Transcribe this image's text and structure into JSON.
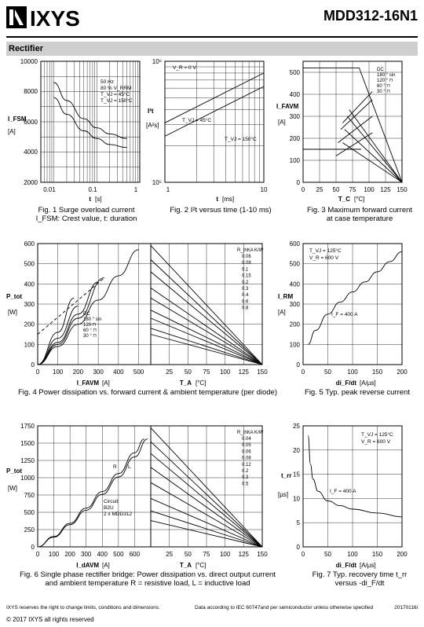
{
  "header": {
    "logo_text": "IXYS",
    "part_number": "MDD312-16N1"
  },
  "section": {
    "title": "Rectifier"
  },
  "figures": {
    "fig1": {
      "caption_line1": "Fig. 1  Surge overload current",
      "caption_line2": "I_FSM: Crest value, t: duration",
      "ylabel": "I_FSM",
      "yunit": "[A]",
      "xlabel": "t",
      "xunit": "[s]",
      "yticks": [
        "10000",
        "8000",
        "6000",
        "4000",
        "2000"
      ],
      "xticks": [
        "0.01",
        "0.1",
        "1"
      ],
      "legend": [
        "50 Hz",
        "80 % V_RRM",
        "T_VJ =  45°C",
        "T_VJ = 150°C"
      ]
    },
    "fig2": {
      "caption": "Fig. 2  I²t versus time (1-10 ms)",
      "ylabel": "I²t",
      "yunit": "[A²s]",
      "xlabel": "t",
      "xunit": "[ms]",
      "yticks": [
        "10⁶",
        "10⁵"
      ],
      "xticks": [
        "1",
        "10"
      ],
      "annotations": [
        "V_R = 0 V",
        "T_VJ = 45°C",
        "T_VJ = 150°C"
      ]
    },
    "fig3": {
      "caption_line1": "Fig. 3  Maximum forward current",
      "caption_line2": "at case temperature",
      "ylabel": "I_FAVM",
      "yunit": "[A]",
      "xlabel": "T_C",
      "xunit": "[°C]",
      "yticks": [
        "500",
        "400",
        "300",
        "200",
        "100",
        "0"
      ],
      "xticks": [
        "0",
        "25",
        "50",
        "75",
        "100",
        "125",
        "150"
      ],
      "legend": [
        "DC",
        "180 ° sin",
        "120 ° ⊓",
        "60 ° ⊓",
        "30 ° ⊓"
      ]
    },
    "fig4": {
      "caption": "Fig. 4  Power dissipation vs. forward current & ambient temperature (per diode)",
      "ylabel": "P_tot",
      "yunit": "[W]",
      "xlabel_left": "I_FAVM",
      "xunit_left": "[A]",
      "xlabel_right": "T_A",
      "xunit_right": "[°C]",
      "yticks": [
        "600",
        "500",
        "400",
        "300",
        "200",
        "100",
        "0"
      ],
      "xticks_left": [
        "0",
        "100",
        "200",
        "300",
        "400",
        "500"
      ],
      "xticks_right": [
        "0",
        "25",
        "50",
        "75",
        "100",
        "125",
        "150"
      ],
      "legend": [
        "DC",
        "180 ° sin",
        "120 ⊓",
        "60 ° ⊓",
        "30 ° ⊓"
      ],
      "rth_header": "R_thKA K/W",
      "rth_values": [
        "0.06",
        "0.08",
        "0.1",
        "0.15",
        "0.2",
        "0.3",
        "0.4",
        "0.6",
        "0.8"
      ]
    },
    "fig5": {
      "caption": "Fig. 5  Typ. peak reverse current",
      "ylabel": "I_RM",
      "yunit": "[A]",
      "xlabel": "di_F/dt",
      "xunit": "[A/µs]",
      "yticks": [
        "600",
        "500",
        "400",
        "300",
        "200",
        "100",
        "0"
      ],
      "xticks": [
        "0",
        "50",
        "100",
        "150",
        "200"
      ],
      "annotations": [
        "T_VJ = 125°C",
        "V_R = 600 V",
        "I_F = 400 A"
      ]
    },
    "fig6": {
      "caption_line1": "Fig. 6  Single phase rectifier bridge: Power dissipation vs. direct output current",
      "caption_line2": "and ambient temperature    R = resistive load,  L = inductive load",
      "ylabel": "P_tot",
      "yunit": "[W]",
      "xlabel_left": "I_dAVM",
      "xunit_left": "[A]",
      "xlabel_right": "T_A",
      "xunit_right": "[°C]",
      "yticks": [
        "1750",
        "1500",
        "1250",
        "1000",
        "750",
        "500",
        "250",
        "0"
      ],
      "xticks_left": [
        "0",
        "100",
        "200",
        "300",
        "400",
        "500",
        "600"
      ],
      "xticks_right": [
        "0",
        "25",
        "50",
        "75",
        "100",
        "125",
        "150"
      ],
      "annotations": [
        "R",
        "L",
        "Circuit",
        "B2U",
        "2 x MDD312"
      ],
      "rth_header": "R_thKA K/W",
      "rth_values": [
        "0.04",
        "0.05",
        "0.06",
        "0.08",
        "0.12",
        "0.2",
        "0.3",
        "0.5"
      ]
    },
    "fig7": {
      "caption_line1": "Fig. 7  Typ. recovery time t_rr",
      "caption_line2": "versus -di_F/dt",
      "ylabel": "t_rr",
      "yunit": "[µs]",
      "xlabel": "di_F/dt",
      "xunit": "[A/µs]",
      "yticks": [
        "25",
        "20",
        "15",
        "10",
        "5",
        "0"
      ],
      "xticks": [
        "0",
        "50",
        "100",
        "150",
        "200"
      ],
      "annotations": [
        "T_VJ = 125°C",
        "V_R = 600 V",
        "I_F = 400 A"
      ]
    }
  },
  "chart_data": [
    {
      "type": "line",
      "title": "Fig. 1",
      "xlabel": "t [s]",
      "ylabel": "I_FSM [A]",
      "xscale": "log",
      "xlim": [
        0.005,
        1
      ],
      "ylim": [
        2000,
        10000
      ],
      "grid": true,
      "series": [
        {
          "name": "T_VJ = 45°C",
          "x": [
            0.01,
            0.02,
            0.05,
            0.1,
            0.2,
            0.5
          ],
          "y": [
            8600,
            7400,
            6200,
            5600,
            5200,
            4900
          ]
        },
        {
          "name": "T_VJ = 150°C",
          "x": [
            0.01,
            0.02,
            0.05,
            0.1,
            0.2,
            0.5
          ],
          "y": [
            7600,
            6500,
            5400,
            4900,
            4500,
            4300
          ]
        }
      ]
    },
    {
      "type": "line",
      "title": "Fig. 2",
      "xlabel": "t [ms]",
      "ylabel": "I²t [A²s]",
      "xscale": "log",
      "yscale": "log",
      "xlim": [
        1,
        10
      ],
      "ylim": [
        100000,
        1000000
      ],
      "grid": true,
      "series": [
        {
          "name": "T_VJ = 45°C",
          "x": [
            1,
            10
          ],
          "y": [
            310000,
            800000
          ]
        },
        {
          "name": "T_VJ = 150°C",
          "x": [
            1,
            10
          ],
          "y": [
            240000,
            620000
          ]
        }
      ]
    },
    {
      "type": "line",
      "title": "Fig. 3",
      "xlabel": "T_C [°C]",
      "ylabel": "I_FAVM [A]",
      "xlim": [
        0,
        150
      ],
      "ylim": [
        0,
        550
      ],
      "grid": true,
      "series": [
        {
          "name": "DC",
          "x": [
            0,
            85,
            150
          ],
          "y": [
            520,
            520,
            0
          ]
        },
        {
          "name": "180 ° sin",
          "x": [
            70,
            150
          ],
          "y": [
            330,
            0
          ]
        },
        {
          "name": "120 ° ⊓",
          "x": [
            67,
            150
          ],
          "y": [
            300,
            0
          ]
        },
        {
          "name": "60 ° ⊓",
          "x": [
            63,
            150
          ],
          "y": [
            240,
            0
          ]
        },
        {
          "name": "30 ° ⊓",
          "x": [
            60,
            150
          ],
          "y": [
            180,
            0
          ]
        }
      ]
    },
    {
      "type": "line",
      "title": "Fig. 4 (left)",
      "xlabel": "I_FAVM [A]",
      "ylabel": "P_tot [W]",
      "xlim": [
        0,
        560
      ],
      "ylim": [
        0,
        600
      ],
      "grid": true,
      "series": [
        {
          "name": "DC",
          "x": [
            0,
            100,
            200,
            300,
            400,
            500
          ],
          "y": [
            0,
            90,
            200,
            320,
            440,
            570
          ]
        },
        {
          "name": "180 ° sin",
          "x": [
            0,
            100,
            200,
            330
          ],
          "y": [
            0,
            100,
            230,
            430
          ]
        },
        {
          "name": "120 ⊓",
          "x": [
            0,
            100,
            200,
            300
          ],
          "y": [
            0,
            110,
            250,
            410
          ]
        },
        {
          "name": "60 ° ⊓",
          "x": [
            0,
            100,
            200
          ],
          "y": [
            0,
            130,
            290
          ]
        },
        {
          "name": "30 ° ⊓",
          "x": [
            0,
            100,
            180
          ],
          "y": [
            0,
            160,
            330
          ]
        }
      ]
    },
    {
      "type": "line",
      "title": "Fig. 5",
      "xlabel": "di_F/dt [A/µs]",
      "ylabel": "I_RM [A]",
      "xlim": [
        0,
        200
      ],
      "ylim": [
        0,
        600
      ],
      "grid": true,
      "series": [
        {
          "name": "I_F = 400 A",
          "x": [
            10,
            25,
            50,
            75,
            100,
            125,
            150,
            175,
            200
          ],
          "y": [
            100,
            170,
            250,
            310,
            360,
            410,
            460,
            510,
            560
          ]
        }
      ]
    },
    {
      "type": "line",
      "title": "Fig. 6 (left)",
      "xlabel": "I_dAVM [A]",
      "ylabel": "P_tot [W]",
      "xlim": [
        0,
        700
      ],
      "ylim": [
        0,
        1750
      ],
      "grid": true,
      "series": [
        {
          "name": "R",
          "x": [
            0,
            100,
            200,
            300,
            400,
            500,
            600,
            660
          ],
          "y": [
            0,
            150,
            340,
            560,
            800,
            1060,
            1360,
            1560
          ]
        },
        {
          "name": "L",
          "x": [
            0,
            100,
            200,
            300,
            400,
            500,
            600,
            680
          ],
          "y": [
            0,
            140,
            320,
            530,
            760,
            1010,
            1300,
            1560
          ]
        }
      ]
    },
    {
      "type": "line",
      "title": "Fig. 7",
      "xlabel": "di_F/dt [A/µs]",
      "ylabel": "t_rr [µs]",
      "xlim": [
        0,
        200
      ],
      "ylim": [
        0,
        25
      ],
      "grid": true,
      "series": [
        {
          "name": "I_F = 400 A",
          "x": [
            10,
            15,
            20,
            30,
            50,
            75,
            100,
            150,
            200
          ],
          "y": [
            23,
            17,
            14,
            11.5,
            9.5,
            8.5,
            7.8,
            7,
            6.2
          ]
        }
      ]
    }
  ],
  "footer": {
    "left": "IXYS reserves the right to change limits, conditions and dimensions.",
    "middle": "Data according to IEC 60747and per semiconductor unless otherwise specified",
    "right": "20170116i",
    "copyright": "© 2017 IXYS all rights reserved"
  }
}
